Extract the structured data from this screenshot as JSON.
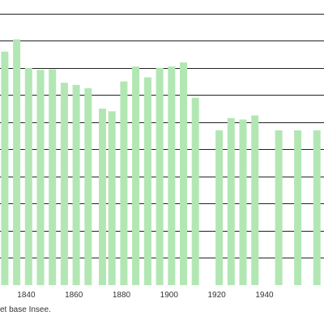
{
  "chart_data": {
    "type": "bar",
    "x": [
      1831,
      1836,
      1841,
      1846,
      1851,
      1856,
      1861,
      1866,
      1872,
      1876,
      1881,
      1886,
      1891,
      1896,
      1901,
      1906,
      1911,
      1921,
      1926,
      1931,
      1936,
      1946,
      1954,
      1962
    ],
    "values": [
      1720,
      1810,
      1600,
      1585,
      1590,
      1490,
      1475,
      1450,
      1300,
      1280,
      1500,
      1610,
      1530,
      1600,
      1610,
      1640,
      1380,
      1140,
      1230,
      1220,
      1250,
      1140,
      1140,
      1140
    ],
    "xticks": [
      1840,
      1860,
      1880,
      1900,
      1920,
      1940
    ],
    "xlim": [
      1829,
      1965
    ],
    "ylim": [
      0,
      2100
    ],
    "grid_step": 200,
    "grid": true,
    "bar_color": "#b2e7b4",
    "grid_color": "#222222"
  },
  "source_note": "et base Insee."
}
